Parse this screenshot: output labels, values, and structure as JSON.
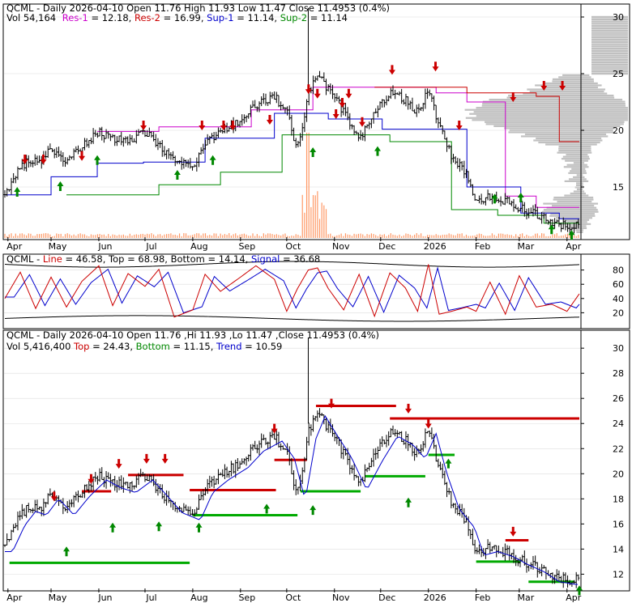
{
  "panel1": {
    "line1": {
      "title": "QCML - Daily 2026-04-10 Open 11.76  High 11.93  Low 11.47  Close 11.4953 (0.4%)"
    },
    "line2": [
      {
        "text": "Vol 54,164",
        "color": "#000000"
      },
      {
        "text": "Res-1",
        "color": "#cc00cc"
      },
      {
        "text": " = 12.18, ",
        "color": "#000000"
      },
      {
        "text": "Res-2",
        "color": "#cc0000"
      },
      {
        "text": " = 16.99, ",
        "color": "#000000"
      },
      {
        "text": "Sup-1",
        "color": "#0000cc"
      },
      {
        "text": " = 11.14, ",
        "color": "#000000"
      },
      {
        "text": "Sup-2",
        "color": "#008800"
      },
      {
        "text": " = 11.14",
        "color": "#000000"
      }
    ],
    "y_ticks": [
      "30",
      "25",
      "20",
      "15"
    ],
    "y_tick_values": [
      30,
      25,
      20,
      15
    ],
    "ylim": [
      10.5,
      31
    ]
  },
  "panel2": {
    "legend": [
      {
        "text": "QCML - ",
        "color": "#000000"
      },
      {
        "text": "Line",
        "color": "#cc0000"
      },
      {
        "text": " = 46.58, ",
        "color": "#000000"
      },
      {
        "text": "Top",
        "color": "#000000"
      },
      {
        "text": " = 68.98, ",
        "color": "#000000"
      },
      {
        "text": "Bottom",
        "color": "#000000"
      },
      {
        "text": " = 14.14, ",
        "color": "#000000"
      },
      {
        "text": "Signal",
        "color": "#0000cc"
      },
      {
        "text": " = 36.68",
        "color": "#000000"
      }
    ],
    "y_ticks": [
      "80",
      "60",
      "40",
      "20"
    ],
    "y_tick_values": [
      80,
      60,
      40,
      20
    ],
    "ylim": [
      0,
      100
    ]
  },
  "panel3": {
    "line1": {
      "title": "QCML - Daily 2026-04-10 Open 11.76 ,Hi 11.93 ,Lo 11.47 ,Close 11.4953 (0.4%)"
    },
    "line2": [
      {
        "text": "Vol 5,416,400 ",
        "color": "#000000"
      },
      {
        "text": "Top",
        "color": "#cc0000"
      },
      {
        "text": " = 24.43, ",
        "color": "#000000"
      },
      {
        "text": "Bottom",
        "color": "#008800"
      },
      {
        "text": " = 11.15, ",
        "color": "#000000"
      },
      {
        "text": "Trend",
        "color": "#0000cc"
      },
      {
        "text": " = 10.59",
        "color": "#000000"
      }
    ],
    "y_ticks": [
      "30",
      "28",
      "26",
      "24",
      "22",
      "20",
      "18",
      "16",
      "14",
      "12"
    ],
    "y_tick_values": [
      30,
      28,
      26,
      24,
      22,
      20,
      18,
      16,
      14,
      12
    ],
    "ylim": [
      10.8,
      31.3
    ]
  },
  "x_axis": {
    "labels": [
      "Apr",
      "May",
      "Jun",
      "Jul",
      "Aug",
      "Sep",
      "Oct",
      "Nov",
      "Dec",
      "2026",
      "Feb",
      "Mar",
      "Apr"
    ],
    "label_days": [
      2,
      30,
      61,
      91,
      122,
      153,
      183,
      214,
      244,
      275,
      306,
      334,
      365
    ],
    "total_days": 373
  },
  "colors": {
    "price": "#000000",
    "res1": "#cc00cc",
    "res2": "#cc0000",
    "sup1": "#0000cc",
    "sup2": "#008800",
    "volume": "#ff9966",
    "profile": "#c0c0c0",
    "up_arrow": "#008800",
    "down_arrow": "#cc0000",
    "osc_line": "#cc0000",
    "osc_signal": "#0000cc",
    "top_level": "#cc0000",
    "bottom_level": "#00aa00",
    "trend": "#0000cc"
  },
  "chart_data": [
    {
      "type": "line",
      "title": "QCML - Daily 2026-04-10 Open 11.76  High 11.93  Low 11.47  Close 11.4953 (0.4%)",
      "x_unit": "days since 2025-04-01",
      "series": [
        {
          "name": "Close",
          "x": [
            0,
            8,
            15,
            22,
            30,
            40,
            50,
            61,
            70,
            80,
            91,
            100,
            110,
            122,
            130,
            140,
            153,
            163,
            175,
            183,
            190,
            197,
            203,
            210,
            220,
            230,
            240,
            250,
            260,
            268,
            275,
            282,
            290,
            300,
            306,
            315,
            325,
            334,
            345,
            355,
            365,
            373
          ],
          "values": [
            14.2,
            16.3,
            17.4,
            17.1,
            18.4,
            17.1,
            18.6,
            19.9,
            19.3,
            18.9,
            19.9,
            18.7,
            17.3,
            16.7,
            18.9,
            19.9,
            20.9,
            22.2,
            23.0,
            21.6,
            18.3,
            23.2,
            25.0,
            23.6,
            21.7,
            19.1,
            21.4,
            23.4,
            22.7,
            21.6,
            23.6,
            20.4,
            17.6,
            16.1,
            13.9,
            14.2,
            13.8,
            13.2,
            12.6,
            11.8,
            11.6,
            11.5
          ]
        },
        {
          "name": "Res-1",
          "values": [
            12.18
          ]
        },
        {
          "name": "Res-2",
          "values": [
            16.99
          ]
        },
        {
          "name": "Sup-1",
          "values": [
            11.14
          ]
        },
        {
          "name": "Sup-2",
          "values": [
            11.14
          ]
        }
      ],
      "ylim": [
        10.5,
        31
      ]
    },
    {
      "type": "line",
      "title": "QCML - Line = 46.58, Top = 68.98, Bottom = 14.14, Signal = 36.68",
      "series": [
        {
          "name": "Line",
          "x": [
            0,
            10,
            20,
            30,
            40,
            50,
            61,
            70,
            80,
            91,
            100,
            110,
            122,
            130,
            140,
            153,
            163,
            175,
            183,
            190,
            197,
            203,
            210,
            220,
            230,
            240,
            250,
            260,
            268,
            275,
            282,
            290,
            300,
            306,
            315,
            325,
            334,
            345,
            355,
            365,
            373
          ],
          "values": [
            40,
            77,
            26,
            70,
            28,
            64,
            86,
            30,
            75,
            57,
            81,
            14,
            24,
            74,
            50,
            70,
            86,
            67,
            22,
            54,
            80,
            83,
            54,
            24,
            74,
            15,
            76,
            55,
            22,
            88,
            18,
            22,
            28,
            22,
            63,
            18,
            72,
            28,
            32,
            22,
            46.58
          ]
        },
        {
          "name": "Signal",
          "values": [
            36.68
          ]
        },
        {
          "name": "Top",
          "values": [
            68.98
          ]
        },
        {
          "name": "Bottom",
          "values": [
            14.14
          ]
        }
      ],
      "ylim": [
        0,
        100
      ]
    },
    {
      "type": "line",
      "title": "QCML - Daily 2026-04-10 Open 11.76 ,Hi 11.93 ,Lo 11.47 ,Close 11.4953 (0.4%)",
      "series": [
        {
          "name": "Top",
          "values": [
            24.43
          ]
        },
        {
          "name": "Bottom",
          "values": [
            11.15
          ]
        },
        {
          "name": "Trend",
          "values": [
            10.59
          ]
        }
      ],
      "ylim": [
        10.8,
        31.3
      ]
    }
  ]
}
